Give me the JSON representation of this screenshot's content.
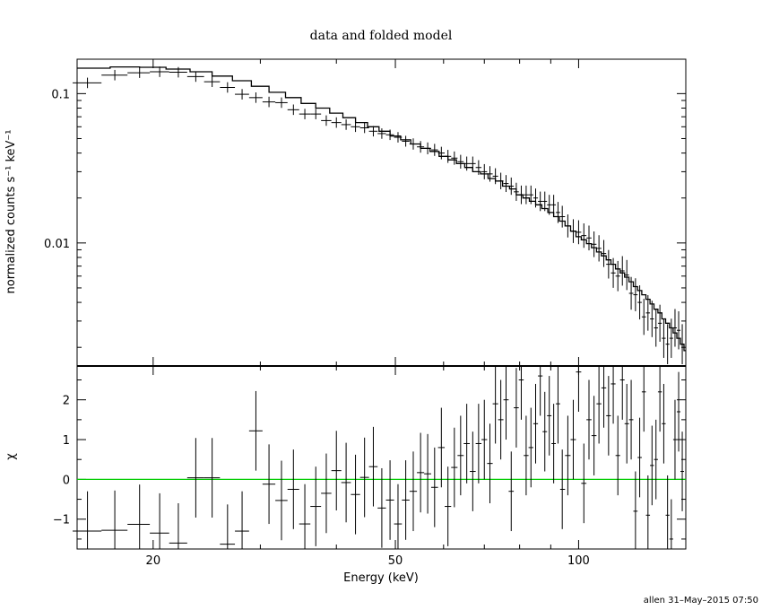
{
  "chart_data": [
    {
      "type": "line",
      "title": "data and folded model",
      "xlabel": "",
      "ylabel": "normalized counts s⁻¹ keV⁻¹",
      "xscale": "log",
      "yscale": "log",
      "xlim": [
        15,
        150
      ],
      "ylim": [
        0.0015,
        0.17
      ],
      "yticks": [
        0.01,
        0.1
      ],
      "ytick_labels": [
        "0.01",
        "0.1"
      ],
      "series": [
        {
          "kind": "data",
          "x": [
            15.6,
            17.3,
            19.0,
            20.5,
            22.0,
            23.5,
            25.0,
            26.5,
            28.0,
            29.5,
            31.0,
            32.5,
            34.0,
            35.5,
            37.0,
            38.5,
            40.0,
            41.5,
            43.0,
            44.5,
            46.0,
            47.5,
            49.0,
            50.5,
            52.0,
            53.5,
            55.0,
            56.5,
            58.0,
            59.5,
            61.0,
            62.5,
            64.0,
            65.5,
            67.0,
            68.5,
            70.0,
            71.5,
            73.0,
            74.5,
            76.0,
            77.5,
            79.0,
            80.5,
            82.0,
            83.5,
            85.0,
            86.5,
            88.0,
            89.5,
            91.0,
            92.5,
            94.0,
            96.0,
            98.0,
            100.0,
            102.0,
            104.0,
            106.0,
            108.0,
            110.0,
            112.0,
            114.0,
            116.0,
            118.0,
            120.0,
            122.0,
            124.0,
            126.0,
            128.0,
            130.0,
            132.0,
            134.0,
            136.0,
            138.0,
            140.0,
            142.0,
            144.0,
            146.0,
            148.0
          ],
          "y": [
            0.118,
            0.133,
            0.138,
            0.14,
            0.139,
            0.13,
            0.12,
            0.11,
            0.099,
            0.094,
            0.088,
            0.087,
            0.078,
            0.073,
            0.073,
            0.066,
            0.064,
            0.062,
            0.06,
            0.059,
            0.056,
            0.054,
            0.053,
            0.051,
            0.048,
            0.046,
            0.044,
            0.043,
            0.042,
            0.04,
            0.038,
            0.037,
            0.035,
            0.034,
            0.034,
            0.032,
            0.03,
            0.029,
            0.028,
            0.026,
            0.025,
            0.024,
            0.022,
            0.021,
            0.021,
            0.021,
            0.02,
            0.019,
            0.019,
            0.018,
            0.018,
            0.016,
            0.015,
            0.013,
            0.012,
            0.0118,
            0.0112,
            0.0108,
            0.0098,
            0.0092,
            0.0085,
            0.0072,
            0.0063,
            0.006,
            0.0065,
            0.0061,
            0.0046,
            0.0045,
            0.004,
            0.0032,
            0.0034,
            0.0031,
            0.0027,
            0.0029,
            0.0023,
            0.0021,
            0.0023,
            0.0027,
            0.0026,
            0.0021
          ]
        },
        {
          "kind": "model",
          "x": [
            15.0,
            17.0,
            19.0,
            21.0,
            23.0,
            25.0,
            27.0,
            29.0,
            31.0,
            33.0,
            35.0,
            37.0,
            39.0,
            41.0,
            43.0,
            45.0,
            47.0,
            49.0,
            51.0,
            53.0,
            55.0,
            57.0,
            59.0,
            61.0,
            63.0,
            65.0,
            67.0,
            69.0,
            71.0,
            73.0,
            75.0,
            77.0,
            79.0,
            81.0,
            83.0,
            85.0,
            87.0,
            89.0,
            91.0,
            93.0,
            95.0,
            97.0,
            99.0,
            101.0,
            103.0,
            105.0,
            107.0,
            109.0,
            111.0,
            113.0,
            115.0,
            117.0,
            119.0,
            121.0,
            123.0,
            125.0,
            127.0,
            129.0,
            131.0,
            133.0,
            135.0,
            137.0,
            139.0,
            141.0,
            143.0,
            145.0,
            147.0,
            149.0
          ],
          "y": [
            0.148,
            0.151,
            0.15,
            0.146,
            0.14,
            0.131,
            0.122,
            0.112,
            0.102,
            0.094,
            0.086,
            0.08,
            0.074,
            0.069,
            0.064,
            0.06,
            0.056,
            0.052,
            0.049,
            0.046,
            0.043,
            0.041,
            0.038,
            0.036,
            0.034,
            0.032,
            0.03,
            0.029,
            0.027,
            0.026,
            0.024,
            0.023,
            0.021,
            0.02,
            0.019,
            0.018,
            0.017,
            0.016,
            0.015,
            0.014,
            0.013,
            0.012,
            0.011,
            0.0105,
            0.0099,
            0.0093,
            0.0087,
            0.0082,
            0.0077,
            0.0072,
            0.0067,
            0.0063,
            0.0059,
            0.0055,
            0.0051,
            0.0048,
            0.0045,
            0.0042,
            0.0039,
            0.0036,
            0.0034,
            0.0031,
            0.0029,
            0.0027,
            0.0025,
            0.0023,
            0.0021,
            0.0019
          ]
        }
      ]
    },
    {
      "type": "scatter",
      "xlabel": "Energy (keV)",
      "ylabel": "χ",
      "xscale": "log",
      "xlim": [
        15,
        150
      ],
      "ylim": [
        -1.75,
        2.85
      ],
      "xticks": [
        20,
        50,
        100
      ],
      "xtick_labels": [
        "20",
        "50",
        "100"
      ],
      "yticks": [
        -1,
        0,
        1,
        2
      ],
      "ytick_labels": [
        "−1",
        "0",
        "1",
        "2"
      ],
      "zero_line_color": "#00cc00",
      "series": [
        {
          "kind": "residuals",
          "x": [
            15.6,
            17.3,
            19.0,
            20.5,
            22.0,
            23.5,
            25.0,
            26.5,
            28.0,
            29.5,
            31.0,
            32.5,
            34.0,
            35.5,
            37.0,
            38.5,
            40.0,
            41.5,
            43.0,
            44.5,
            46.0,
            47.5,
            49.0,
            50.5,
            52.0,
            53.5,
            55.0,
            56.5,
            58.0,
            59.5,
            61.0,
            62.5,
            64.0,
            65.5,
            67.0,
            68.5,
            70.0,
            71.5,
            73.0,
            74.5,
            76.0,
            77.5,
            79.0,
            80.5,
            82.0,
            83.5,
            85.0,
            86.5,
            88.0,
            89.5,
            91.0,
            92.5,
            94.0,
            96.0,
            98.0,
            100.0,
            102.0,
            104.0,
            106.0,
            108.0,
            110.0,
            112.0,
            114.0,
            116.0,
            118.0,
            120.0,
            122.0,
            124.0,
            126.0,
            128.0,
            130.0,
            132.0,
            134.0,
            136.0,
            138.0,
            140.0,
            142.0,
            144.0,
            146.0,
            148.0
          ],
          "y": [
            -1.3,
            -1.28,
            -1.13,
            -1.35,
            -1.6,
            0.04,
            0.04,
            -1.63,
            -1.3,
            1.22,
            -0.12,
            -0.53,
            -0.25,
            -1.12,
            -0.68,
            -0.35,
            0.22,
            -0.08,
            -0.38,
            0.05,
            0.32,
            -0.72,
            -0.52,
            -1.12,
            -0.52,
            -0.3,
            0.17,
            0.14,
            -0.2,
            0.8,
            -0.68,
            0.3,
            0.6,
            0.9,
            0.2,
            0.9,
            1.0,
            0.4,
            1.9,
            1.5,
            2.0,
            -0.3,
            1.8,
            2.5,
            0.6,
            0.8,
            1.4,
            2.6,
            1.2,
            1.6,
            0.9,
            1.9,
            -0.25,
            0.6,
            1.0,
            2.7,
            -0.1,
            1.5,
            1.1,
            1.9,
            2.3,
            1.6,
            2.4,
            0.6,
            2.5,
            1.4,
            1.5,
            -0.8,
            0.55,
            2.2,
            -0.9,
            0.35,
            0.5,
            2.2,
            1.4,
            -0.9,
            -1.5,
            1.0,
            1.7,
            0.2
          ]
        }
      ]
    }
  ],
  "footer": "allen 31–May–2015 07:50"
}
